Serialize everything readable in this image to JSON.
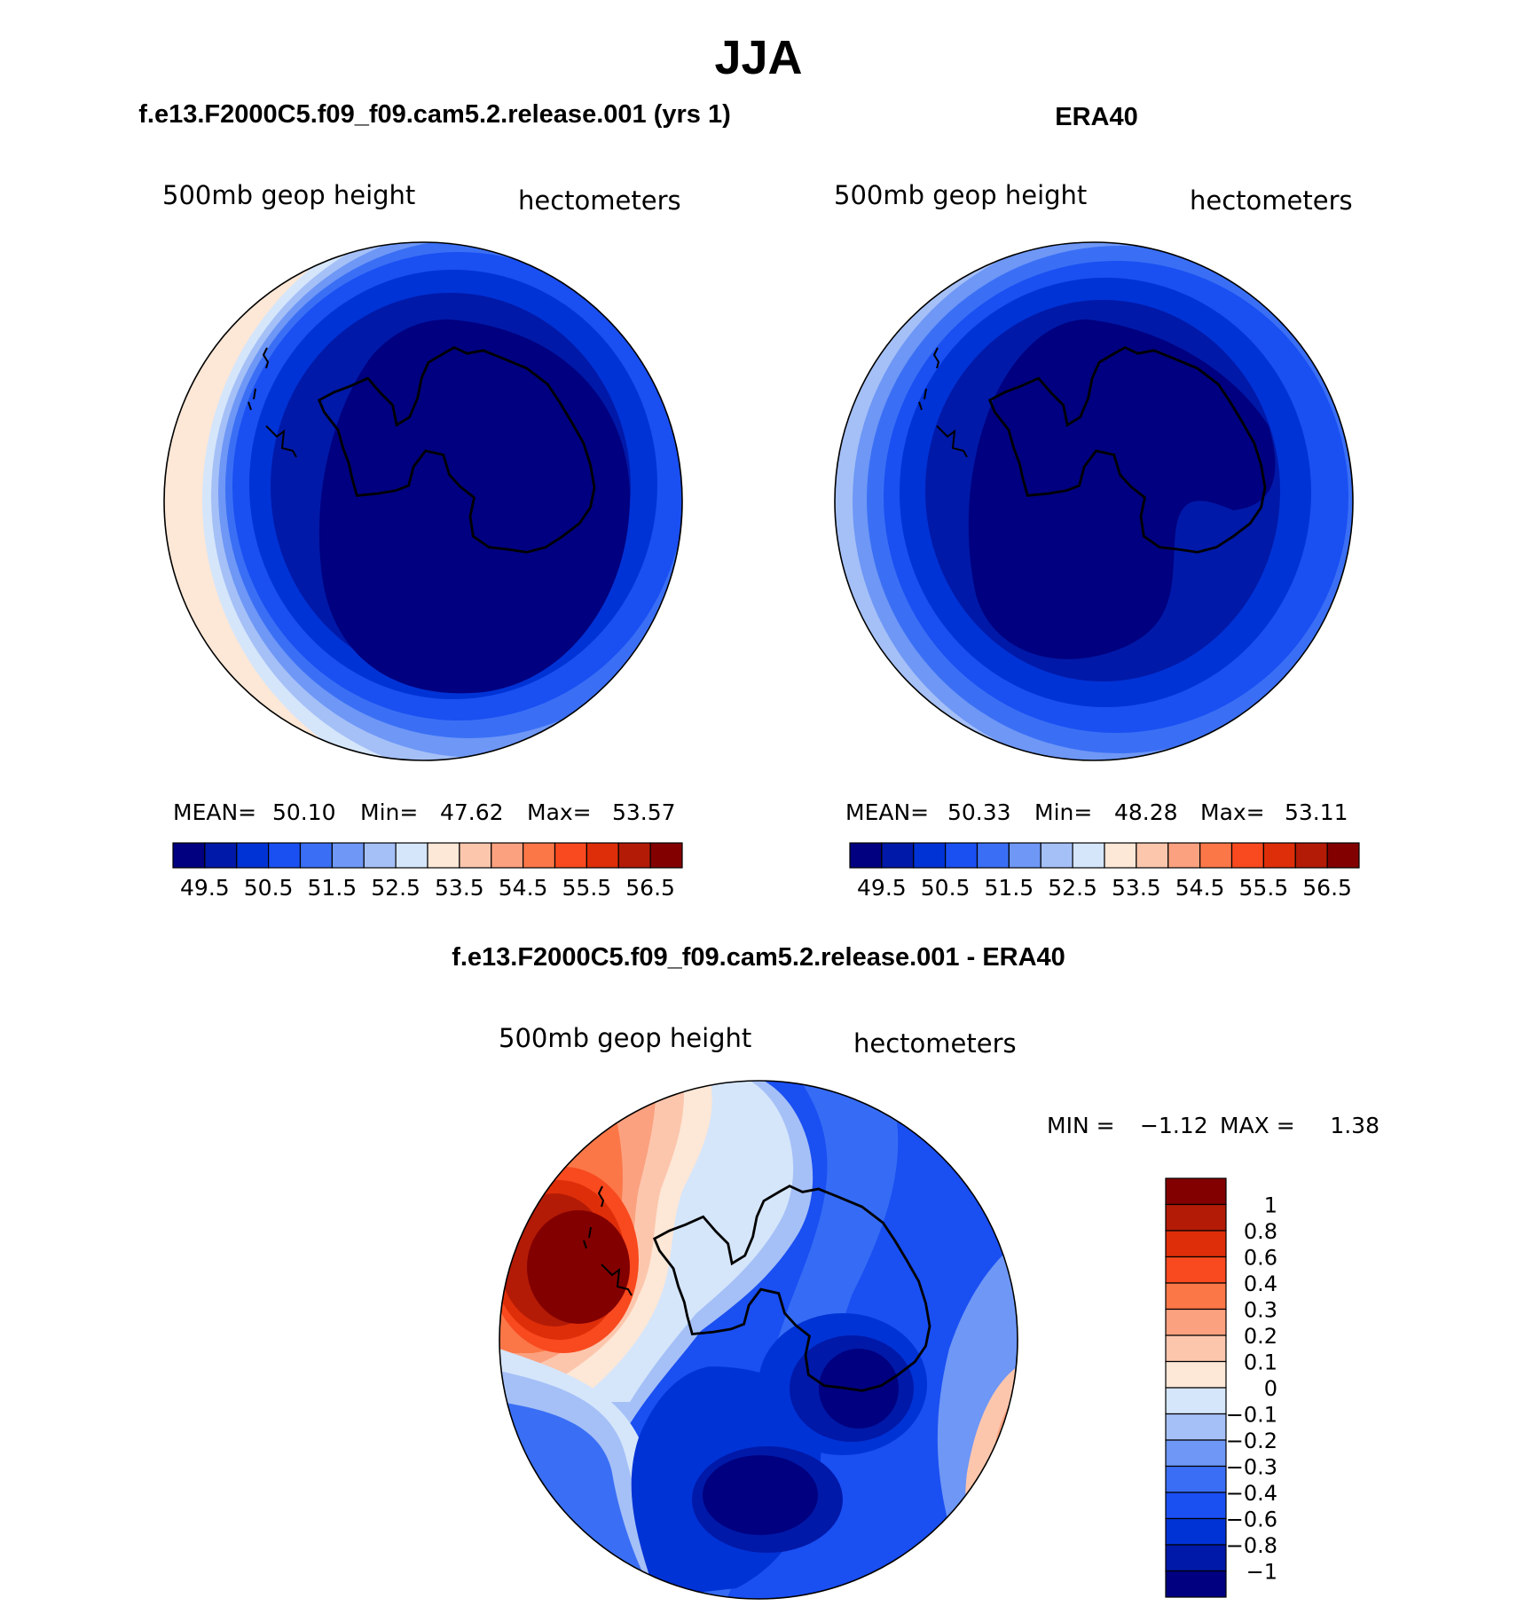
{
  "figure": {
    "title": "JJA",
    "panels": [
      {
        "title": "f.e13.F2000C5.f09_f09.cam5.2.release.001 (yrs 1)",
        "var_label": "500mb geop height",
        "units": "hectometers",
        "stats": {
          "mean_label": "MEAN=",
          "mean": "50.10",
          "min_label": "Min=",
          "min": "47.62",
          "max_label": "Max=",
          "max": "53.57"
        }
      },
      {
        "title": "ERA40",
        "var_label": "500mb geop height",
        "units": "hectometers",
        "stats": {
          "mean_label": "MEAN=",
          "mean": "50.33",
          "min_label": "Min=",
          "min": "48.28",
          "max_label": "Max=",
          "max": "53.11"
        }
      }
    ],
    "diff_panel": {
      "title": "f.e13.F2000C5.f09_f09.cam5.2.release.001 - ERA40",
      "var_label": "500mb geop height",
      "units": "hectometers",
      "min_label": "MIN =",
      "min": "−1.12",
      "max_label": "MAX =",
      "max": "1.38"
    }
  },
  "colorbars": {
    "abs_colors": [
      "#000080",
      "#0019a8",
      "#0033d6",
      "#1a4ff2",
      "#3a6ff5",
      "#6e97f6",
      "#a5c0f7",
      "#d5e6fb",
      "#fde7d6",
      "#fcc6ad",
      "#fba17f",
      "#fb7748",
      "#f9491e",
      "#de2e09",
      "#b31b06",
      "#830000"
    ],
    "abs_tick_labels": [
      "49.5",
      "50.5",
      "51.5",
      "52.5",
      "53.5",
      "54.5",
      "55.5",
      "56.5"
    ],
    "diff_colors": [
      "#000080",
      "#0019a8",
      "#0033d6",
      "#1a4ff2",
      "#3a6ff5",
      "#6e97f6",
      "#a5c0f7",
      "#d5e6fb",
      "#fde7d6",
      "#fcc6ad",
      "#fba17f",
      "#fb7748",
      "#f9491e",
      "#de2e09",
      "#b31b06",
      "#830000"
    ],
    "diff_tick_labels": [
      "1",
      "0.8",
      "0.6",
      "0.4",
      "0.3",
      "0.2",
      "0.1",
      "0",
      "−0.1",
      "−0.2",
      "−0.3",
      "−0.4",
      "−0.6",
      "−0.8",
      "−1"
    ]
  }
}
